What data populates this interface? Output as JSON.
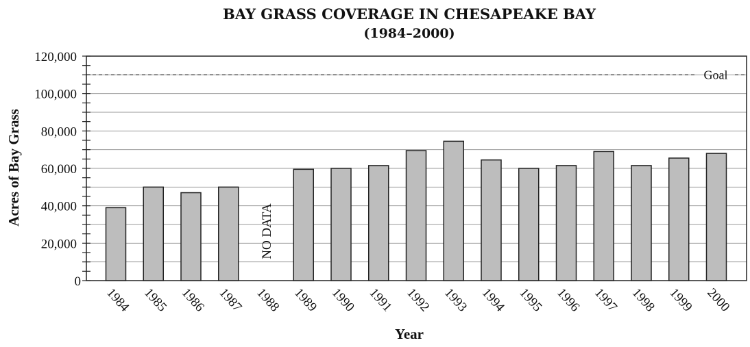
{
  "chart_data": {
    "type": "bar",
    "title": "BAY GRASS COVERAGE IN CHESAPEAKE BAY",
    "subtitle": "(1984–2000)",
    "xlabel": "Year",
    "ylabel": "Acres of Bay Grass",
    "ylim": [
      0,
      120000
    ],
    "yticks": [
      "0",
      "20,000",
      "40,000",
      "60,000",
      "80,000",
      "100,000",
      "120,000"
    ],
    "ytick_values": [
      0,
      20000,
      40000,
      60000,
      80000,
      100000,
      120000
    ],
    "grid": true,
    "categories": [
      "1984",
      "1985",
      "1986",
      "1987",
      "1988",
      "1989",
      "1990",
      "1991",
      "1992",
      "1993",
      "1994",
      "1995",
      "1996",
      "1997",
      "1998",
      "1999",
      "2000"
    ],
    "values": [
      39000,
      50000,
      47000,
      50000,
      null,
      59500,
      60000,
      61500,
      69500,
      74500,
      64500,
      60000,
      61500,
      69000,
      61500,
      65500,
      68000
    ],
    "no_data_label": "NO DATA",
    "goal": {
      "label": "Goal",
      "value": 110000
    },
    "bar_color": "#bdbdbd"
  }
}
